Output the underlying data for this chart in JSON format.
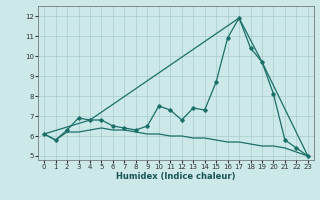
{
  "xlabel": "Humidex (Indice chaleur)",
  "bg_color": "#cce8e8",
  "grid_color": "#aacccc",
  "line_color": "#1a7068",
  "xlim": [
    -0.5,
    23.5
  ],
  "ylim": [
    4.8,
    12.5
  ],
  "xticks": [
    0,
    1,
    2,
    3,
    4,
    5,
    6,
    7,
    8,
    9,
    10,
    11,
    12,
    13,
    14,
    15,
    16,
    17,
    18,
    19,
    20,
    21,
    22,
    23
  ],
  "yticks": [
    5,
    6,
    7,
    8,
    9,
    10,
    11,
    12
  ],
  "line1_x": [
    0,
    1,
    2,
    3,
    4,
    5,
    6,
    7,
    8,
    9,
    10,
    11,
    12,
    13,
    14,
    15,
    16,
    17,
    18,
    19,
    20,
    21,
    22,
    23
  ],
  "line1_y": [
    6.1,
    5.8,
    6.3,
    6.9,
    6.8,
    6.8,
    6.5,
    6.4,
    6.3,
    6.5,
    7.5,
    7.3,
    6.8,
    7.4,
    7.3,
    8.7,
    10.9,
    11.9,
    10.4,
    9.7,
    8.1,
    5.8,
    5.4,
    5.0
  ],
  "line2_x": [
    0,
    1,
    2,
    3,
    4,
    5,
    6,
    7,
    8,
    9,
    10,
    11,
    12,
    13,
    14,
    15,
    16,
    17,
    18,
    19,
    20,
    21,
    22,
    23
  ],
  "line2_y": [
    6.1,
    5.8,
    6.2,
    6.2,
    6.3,
    6.4,
    6.3,
    6.3,
    6.2,
    6.1,
    6.1,
    6.0,
    6.0,
    5.9,
    5.9,
    5.8,
    5.7,
    5.7,
    5.6,
    5.5,
    5.5,
    5.4,
    5.2,
    5.0
  ],
  "line3_x": [
    0,
    4,
    17,
    19,
    23
  ],
  "line3_y": [
    6.1,
    6.8,
    11.9,
    9.7,
    5.0
  ]
}
